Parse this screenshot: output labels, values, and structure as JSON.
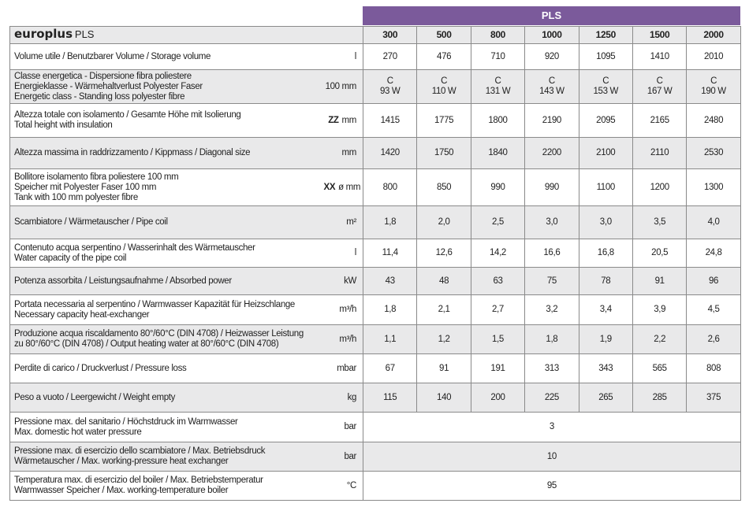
{
  "header": {
    "group": "PLS",
    "brand": "europlus",
    "model": "PLS",
    "columns": [
      "300",
      "500",
      "800",
      "1000",
      "1250",
      "1500",
      "2000"
    ]
  },
  "rows": [
    {
      "label": [
        "Volume utile / Benutzbarer Volume / Storage volume"
      ],
      "unit": "l",
      "values": [
        "270",
        "476",
        "710",
        "920",
        "1095",
        "1410",
        "2010"
      ]
    },
    {
      "label": [
        "Classe energetica - Dispersione fibra poliestere",
        "Energieklasse - Wärmehaltverlust Polyester Faser",
        "Energetic class - Standing loss polyester fibre"
      ],
      "unit": "100 mm",
      "values": [
        [
          "C",
          "93 W"
        ],
        [
          "C",
          "110 W"
        ],
        [
          "C",
          "131 W"
        ],
        [
          "C",
          "143 W"
        ],
        [
          "C",
          "153 W"
        ],
        [
          "C",
          "167 W"
        ],
        [
          "C",
          "190 W"
        ]
      ]
    },
    {
      "label": [
        "Altezza totale con isolamento / Gesamte Höhe mit Isolierung",
        "Total height with insulation"
      ],
      "mark": "ZZ",
      "unit": "mm",
      "values": [
        "1415",
        "1775",
        "1800",
        "2190",
        "2095",
        "2165",
        "2480"
      ]
    },
    {
      "label": [
        "Altezza massima in raddrizzamento / Kippmass / Diagonal size"
      ],
      "unit": "mm",
      "values": [
        "1420",
        "1750",
        "1840",
        "2200",
        "2100",
        "2110",
        "2530"
      ]
    },
    {
      "label": [
        "Bollitore isolamento fibra poliestere 100 mm",
        "Speicher mit Polyester Faser 100 mm",
        "Tank with 100 mm polyester fibre"
      ],
      "mark": "XX",
      "unit": "ø mm",
      "values": [
        "800",
        "850",
        "990",
        "990",
        "1100",
        "1200",
        "1300"
      ]
    },
    {
      "label": [
        "Scambiatore / Wärmetauscher / Pipe coil"
      ],
      "unit": "m²",
      "values": [
        "1,8",
        "2,0",
        "2,5",
        "3,0",
        "3,0",
        "3,5",
        "4,0"
      ]
    },
    {
      "label": [
        "Contenuto acqua serpentino / Wasserinhalt des Wärmetauscher",
        "Water capacity of the pipe coil"
      ],
      "unit": "l",
      "values": [
        "11,4",
        "12,6",
        "14,2",
        "16,6",
        "16,8",
        "20,5",
        "24,8"
      ]
    },
    {
      "label": [
        "Potenza assorbita / Leistungsaufnahme / Absorbed power"
      ],
      "unit": "kW",
      "values": [
        "43",
        "48",
        "63",
        "75",
        "78",
        "91",
        "96"
      ]
    },
    {
      "label": [
        "Portata necessaria al serpentino / Warmwasser Kapazität für Heizschlange",
        "Necessary capacity heat-exchanger"
      ],
      "unit": "m³/h",
      "values": [
        "1,8",
        "2,1",
        "2,7",
        "3,2",
        "3,4",
        "3,9",
        "4,5"
      ]
    },
    {
      "label": [
        "Produzione acqua riscaldamento 80°/60°C (DIN 4708) / Heizwasser Leistung",
        "zu 80°/60°C (DIN 4708) / Output heating water at 80°/60°C (DIN 4708)"
      ],
      "unit": "m³/h",
      "values": [
        "1,1",
        "1,2",
        "1,5",
        "1,8",
        "1,9",
        "2,2",
        "2,6"
      ]
    },
    {
      "label": [
        "Perdite di carico / Druckverlust / Pressure loss"
      ],
      "unit": "mbar",
      "values": [
        "67",
        "91",
        "191",
        "313",
        "343",
        "565",
        "808"
      ]
    },
    {
      "label": [
        "Peso a vuoto / Leergewicht / Weight empty"
      ],
      "unit": "kg",
      "values": [
        "115",
        "140",
        "200",
        "225",
        "265",
        "285",
        "375"
      ]
    },
    {
      "label": [
        "Pressione max. del sanitario / Höchstdruck im Warmwasser",
        "Max. domestic hot water pressure"
      ],
      "unit": "bar",
      "span": "3"
    },
    {
      "label": [
        "Pressione max. di esercizio dello scambiatore / Max. Betriebsdruck",
        "Wärmetauscher / Max. working-pressure heat exchanger"
      ],
      "unit": "bar",
      "span": "10"
    },
    {
      "label": [
        "Temperatura max. di esercizio del boiler / Max. Betriebstemperatur",
        "Warmwasser Speicher / Max. working-temperature boiler"
      ],
      "unit": "°C",
      "span": "95"
    }
  ]
}
